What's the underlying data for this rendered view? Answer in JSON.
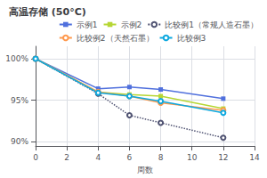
{
  "chart_data": {
    "type": "line",
    "title": "高温存储 (50°C)",
    "xlabel": "周数",
    "x": [
      0,
      4,
      6,
      8,
      12
    ],
    "series": [
      {
        "name": "示例1",
        "values": [
          100,
          96.4,
          96.6,
          96.3,
          95.2
        ],
        "marker": "square",
        "line_style": "solid"
      },
      {
        "name": "示例2",
        "values": [
          100,
          96.0,
          95.7,
          95.5,
          94.0
        ],
        "marker": "square",
        "line_style": "solid"
      },
      {
        "name": "比较例1（常规人造石墨）",
        "values": [
          100,
          95.8,
          93.2,
          92.3,
          90.5
        ],
        "marker": "circle",
        "line_style": "dotted"
      },
      {
        "name": "比较例2（天然石墨）",
        "values": [
          100,
          96.0,
          95.5,
          94.7,
          93.8
        ],
        "marker": "circle",
        "line_style": "solid"
      },
      {
        "name": "比较例3",
        "values": [
          100,
          95.9,
          95.5,
          94.9,
          93.5
        ],
        "marker": "circle",
        "line_style": "solid"
      }
    ],
    "xlim": [
      0,
      14
    ],
    "xticks": [
      0,
      2,
      4,
      6,
      8,
      10,
      12,
      14
    ],
    "ylim": [
      89.5,
      101.5
    ],
    "yticks": [
      {
        "value": 90,
        "label": "90%"
      },
      {
        "value": 95,
        "label": "95%"
      },
      {
        "value": 100,
        "label": "100%"
      }
    ],
    "grid": true,
    "legend": "upper right"
  }
}
